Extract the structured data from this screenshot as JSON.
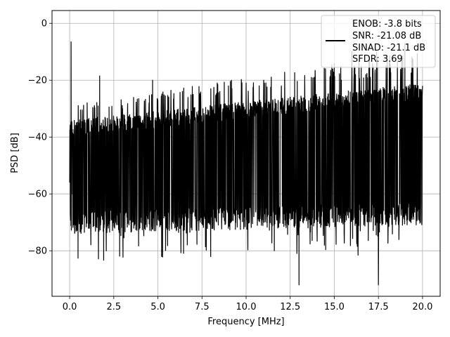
{
  "chart_data": {
    "type": "line",
    "title": "",
    "xlabel": "Frequency [MHz]",
    "ylabel": "PSD [dB]",
    "xlim": [
      -1.0,
      21.0
    ],
    "ylim": [
      -96.0,
      4.5
    ],
    "xticks": [
      0.0,
      2.5,
      5.0,
      7.5,
      10.0,
      12.5,
      15.0,
      17.5,
      20.0
    ],
    "xtick_labels": [
      "0.0",
      "2.5",
      "5.0",
      "7.5",
      "10.0",
      "12.5",
      "15.0",
      "17.5",
      "20.0"
    ],
    "yticks": [
      0,
      -20,
      -40,
      -60,
      -80
    ],
    "ytick_labels": [
      "0",
      "−20",
      "−40",
      "−60",
      "−80"
    ],
    "grid": true,
    "legend_position": "top-right",
    "series": [
      {
        "color": "#000000",
        "description_points": {
          "x": [
            0.0,
            0.08,
            0.16,
            1.7,
            2.5,
            3.0,
            4.5,
            4.7,
            5.0,
            7.0,
            8.0,
            9.0,
            10.0,
            11.0,
            11.6,
            12.0,
            13.0,
            13.7,
            14.5,
            15.0,
            15.4,
            16.0,
            16.2,
            17.0,
            17.4,
            17.5,
            18.0,
            19.0,
            20.0
          ],
          "y": [
            -56,
            -6.5,
            -60,
            -18.5,
            -34,
            -30,
            -28,
            -20,
            -27,
            -25,
            -23,
            -22,
            -21,
            -20,
            -80,
            -22,
            -92,
            -19,
            -16,
            -14,
            -20,
            -10,
            -18,
            -12,
            -10,
            -92,
            -11,
            -7,
            -22
          ]
        },
        "noise_floor_top": [
          -34,
          -21
        ],
        "noise_floor_bottom": [
          -70,
          -67
        ]
      }
    ],
    "legend": {
      "entries": [
        "ENOB: -3.8 bits",
        "SNR: -21.08 dB",
        "SINAD: -21.1 dB",
        "SFDR: 3.69"
      ]
    }
  }
}
